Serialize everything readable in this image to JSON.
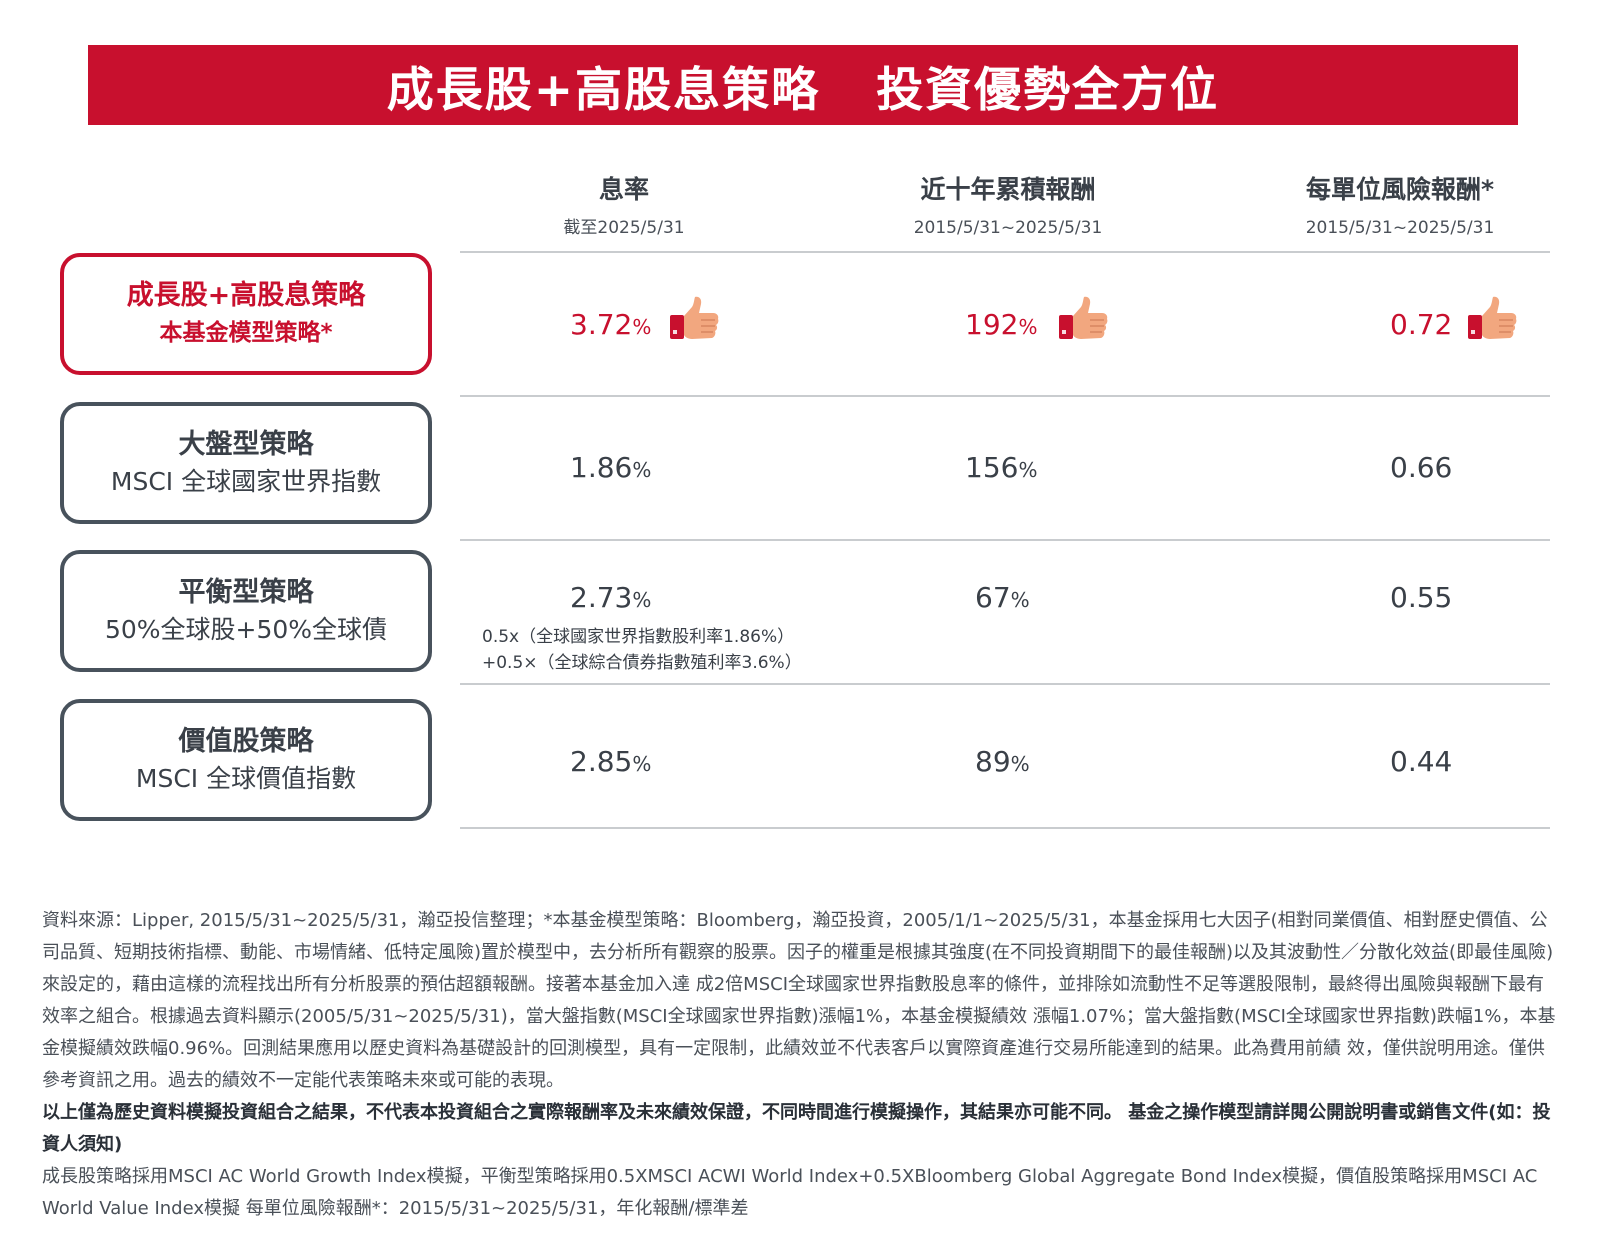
{
  "banner": {
    "title_part1": "成長股+高股息策略",
    "title_part2": "投資優勢全方位",
    "color": "#c8102e"
  },
  "columns": [
    {
      "title": "息率",
      "subtitle": "截至2025/5/31"
    },
    {
      "title": "近十年累積報酬",
      "subtitle": "2015/5/31~2025/5/31"
    },
    {
      "title": "每單位風險報酬*",
      "subtitle": "2015/5/31~2025/5/31"
    }
  ],
  "rows": [
    {
      "name": "成長股+高股息策略",
      "sub": "本基金模型策略*",
      "yield": "3.72",
      "cum_return": "192",
      "risk_return": "0.72",
      "highlight": true,
      "icon": "thumbs-up-icon"
    },
    {
      "name": "大盤型策略",
      "sub": "MSCI 全球國家世界指數",
      "yield": "1.86",
      "cum_return": "156",
      "risk_return": "0.66"
    },
    {
      "name": "平衡型策略",
      "sub": "50%全球股+50%全球債",
      "yield": "2.73",
      "cum_return": "67",
      "risk_return": "0.55",
      "note_line1": "0.5x（全球國家世界指數股利率1.86%）",
      "note_line2": "+0.5×（全球綜合債券指數殖利率3.6%）"
    },
    {
      "name": "價值股策略",
      "sub": "MSCI 全球價值指數",
      "yield": "2.85",
      "cum_return": "89",
      "risk_return": "0.44"
    }
  ],
  "percent_sign": "%",
  "footnote": {
    "p1": "資料來源：Lipper, 2015/5/31~2025/5/31，瀚亞投信整理；*本基金模型策略：Bloomberg，瀚亞投資，2005/1/1~2025/5/31，本基金採用七大因子(相對同業價值、相對歷史價值、公司品質、短期技術指標、動能、市場情緒、低特定風險)置於模型中，去分析所有觀察的股票。因子的權重是根據其強度(在不同投資期間下的最佳報酬)以及其波動性／分散化效益(即最佳風險)來設定的，藉由這樣的流程找出所有分析股票的預估超額報酬。接著本基金加入達 成2倍MSCI全球國家世界指數股息率的條件，並排除如流動性不足等選股限制，最終得出風險與報酬下最有效率之組合。根據過去資料顯示(2005/5/31~2025/5/31)，當大盤指數(MSCI全球國家世界指數)漲幅1%，本基金模擬績效 漲幅1.07%；當大盤指數(MSCI全球國家世界指數)跌幅1%，本基金模擬績效跌幅0.96%。回測結果應用以歷史資料為基礎設計的回測模型，具有一定限制，此績效並不代表客戶以實際資產進行交易所能達到的結果。此為費用前績 效，僅供說明用途。僅供參考資訊之用。過去的績效不一定能代表策略未來或可能的表現。",
    "p2": "以上僅為歷史資料模擬投資組合之結果，不代表本投資組合之實際報酬率及未來績效保證，不同時間進行模擬操作，其結果亦可能不同。 基金之操作模型請詳閱公開說明書或銷售文件(如：投資人須知)",
    "p3": "成長股策略採用MSCI AC World Growth Index模擬，平衡型策略採用0.5XMSCI ACWI World Index+0.5XBloomberg Global Aggregate Bond Index模擬，價值股策略採用MSCI AC World Value Index模擬 每單位風險報酬*：2015/5/31~2025/5/31，年化報酬/標準差"
  }
}
